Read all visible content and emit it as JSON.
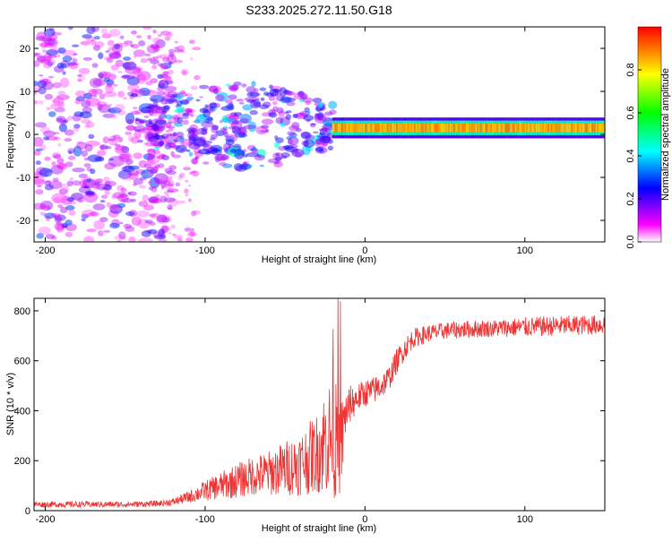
{
  "chart_data": [
    {
      "type": "heatmap",
      "title": "S233.2025.272.11.50.G18",
      "xlabel": "Height of straight line (km)",
      "ylabel": "Frequency (Hz)",
      "xlim": [
        -207,
        150
      ],
      "ylim": [
        -25,
        25
      ],
      "xticks": [
        -200,
        -100,
        0,
        100
      ],
      "yticks": [
        -20,
        -10,
        0,
        10,
        20
      ],
      "colorbar": {
        "label": "Normalized spectral amplitude",
        "range": [
          0,
          1
        ],
        "ticks": [
          "0.0",
          "0.2",
          "0.4",
          "0.6",
          "0.8"
        ],
        "colormap": [
          "#ffffff",
          "#ff00ff",
          "#0000ff",
          "#00ffff",
          "#00ff00",
          "#ffff00",
          "#ff0000"
        ]
      },
      "features": [
        {
          "name": "dominant line",
          "x_range": [
            -20,
            150
          ],
          "frequency_hz": 1.5,
          "amplitude": 0.95
        },
        {
          "name": "scattered blobs",
          "x_range": [
            -207,
            -120
          ],
          "frequency_hz_range": [
            -25,
            25
          ],
          "amplitude": 0.25
        },
        {
          "name": "transition band",
          "x_range": [
            -135,
            -20
          ],
          "frequency_hz_range": [
            -12,
            12
          ],
          "amplitude": 0.45
        }
      ]
    },
    {
      "type": "line",
      "xlabel": "Height of straight line (km)",
      "ylabel": "SNR (10 * v/v)",
      "xlim": [
        -207,
        150
      ],
      "ylim": [
        0,
        850
      ],
      "xticks": [
        -200,
        -100,
        0,
        100
      ],
      "yticks": [
        0,
        200,
        400,
        600,
        800
      ],
      "series": [
        {
          "name": "SNR",
          "color": "#ee3333",
          "x": [
            -207,
            -180,
            -150,
            -130,
            -120,
            -110,
            -100,
            -90,
            -80,
            -70,
            -60,
            -50,
            -40,
            -30,
            -25,
            -20,
            -15,
            -12,
            -10,
            -5,
            0,
            5,
            10,
            15,
            20,
            25,
            30,
            40,
            50,
            60,
            80,
            100,
            120,
            150
          ],
          "y": [
            25,
            25,
            25,
            28,
            35,
            55,
            80,
            100,
            120,
            140,
            150,
            170,
            190,
            230,
            280,
            300,
            250,
            400,
            420,
            450,
            470,
            480,
            500,
            530,
            600,
            650,
            690,
            710,
            720,
            725,
            730,
            735,
            740,
            745
          ],
          "spread": [
            12,
            12,
            12,
            12,
            15,
            25,
            40,
            55,
            70,
            80,
            90,
            110,
            130,
            160,
            220,
            250,
            200,
            90,
            80,
            60,
            55,
            55,
            55,
            50,
            50,
            45,
            40,
            35,
            35,
            35,
            35,
            40,
            40,
            40
          ]
        }
      ]
    }
  ]
}
